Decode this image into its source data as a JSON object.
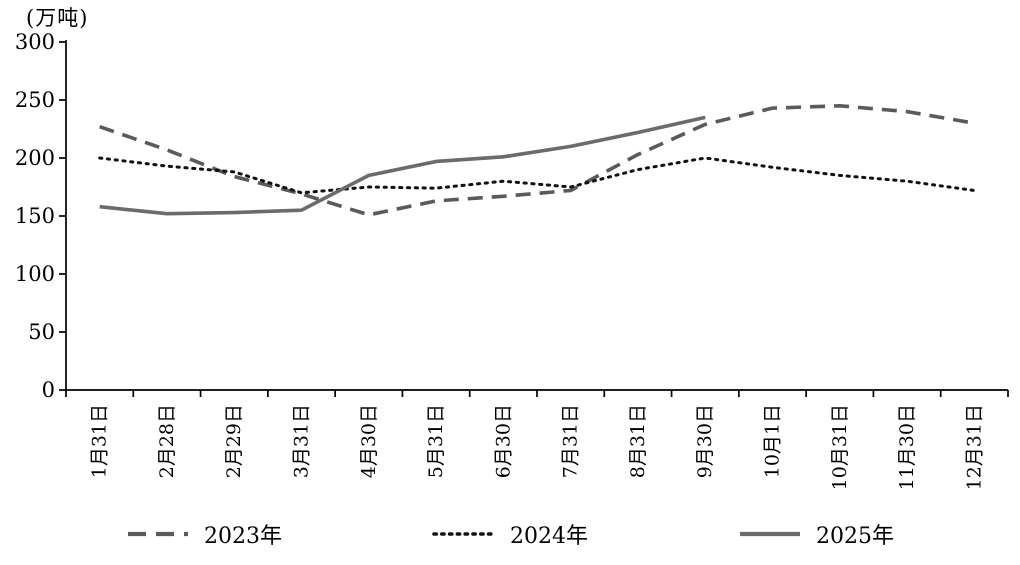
{
  "chart_data": {
    "type": "line",
    "title": "",
    "ylabel": "(万吨)",
    "xlabel": "",
    "ylim": [
      0,
      300
    ],
    "yticks": [
      0,
      50,
      100,
      150,
      200,
      250,
      300
    ],
    "grid": false,
    "legend_position": "bottom",
    "categories": [
      "1月31日",
      "2月28日",
      "2月29日",
      "3月31日",
      "4月30日",
      "5月31日",
      "6月30日",
      "7月31日",
      "8月31日",
      "9月30日",
      "10月1日",
      "10月31日",
      "11月30日",
      "12月31日"
    ],
    "series": [
      {
        "name": "2023年",
        "style": "dashed",
        "color": "#5a5a5a",
        "values": [
          227,
          207,
          184,
          169,
          151,
          163,
          167,
          172,
          203,
          229,
          243,
          245,
          240,
          230
        ]
      },
      {
        "name": "2024年",
        "style": "dotted",
        "color": "#111111",
        "values": [
          200,
          193,
          188,
          170,
          175,
          174,
          180,
          175,
          190,
          200,
          192,
          185,
          180,
          172
        ]
      },
      {
        "name": "2025年",
        "style": "solid",
        "color": "#6b6b6b",
        "values": [
          158,
          152,
          153,
          155,
          185,
          197,
          201,
          210,
          222,
          235
        ]
      }
    ]
  }
}
